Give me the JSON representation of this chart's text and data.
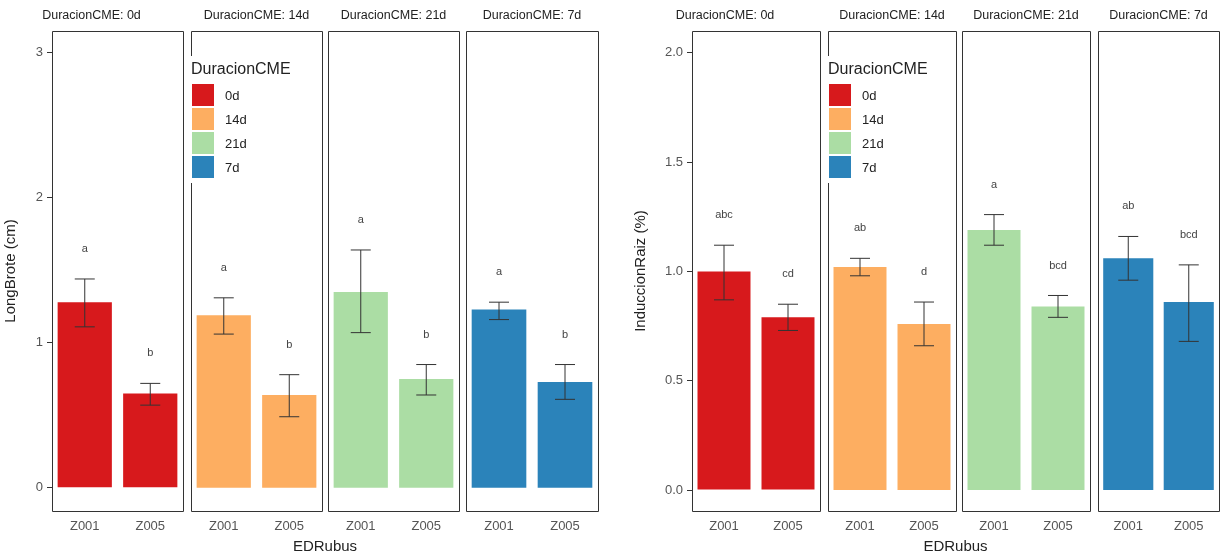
{
  "chart_data": [
    {
      "type": "bar",
      "title": "DuracionCME: 0d",
      "ylabel": "LongBrote (cm)",
      "categories": [
        "Z001",
        "Z005"
      ],
      "ylim": [
        -0.16,
        3.15
      ],
      "yticks": [
        0,
        1,
        2,
        3
      ],
      "grid": false,
      "legend": "right",
      "series": [
        {
          "name": "0d",
          "color": "#d7191c",
          "values": [
            1.28,
            0.65
          ],
          "errors": [
            [
              1.11,
              1.44
            ],
            [
              0.57,
              0.72
            ]
          ]
        }
      ],
      "annotations": [
        "a",
        "b"
      ]
    },
    {
      "type": "bar",
      "title": "DuracionCME: 14d",
      "xlabel": "EDRubus",
      "categories": [
        "Z001",
        "Z005"
      ],
      "ylim": [
        -0.16,
        3.15
      ],
      "tick_labels": "x",
      "grid": false,
      "legend": "top left",
      "legend_title": "DuracionCME",
      "series": [
        {
          "name": "14d",
          "color": "#fdae61",
          "values": [
            1.19,
            0.64
          ],
          "errors": [
            [
              1.06,
              1.31
            ],
            [
              0.49,
              0.78
            ]
          ]
        }
      ],
      "annotations": [
        "a",
        "b"
      ]
    },
    {
      "type": "bar",
      "title": "DuracionCME: 21d",
      "categories": [
        "Z001",
        "Z005"
      ],
      "ylim": [
        -0.16,
        3.15
      ],
      "tick_labels": "x",
      "grid": false,
      "legend": "left",
      "series": [
        {
          "name": "21d",
          "color": "#abdda4",
          "values": [
            1.35,
            0.75
          ],
          "errors": [
            [
              1.07,
              1.64
            ],
            [
              0.64,
              0.85
            ]
          ]
        }
      ],
      "annotations": [
        "a",
        "b"
      ]
    },
    {
      "type": "bar",
      "title": "DuracionCME: 7d",
      "categories": [
        "Z001",
        "Z005"
      ],
      "ylim": [
        -0.16,
        3.15
      ],
      "tick_labels": "x",
      "grid": false,
      "legend": "left",
      "series": [
        {
          "name": "7d",
          "color": "#2b83ba",
          "values": [
            1.23,
            0.73
          ],
          "errors": [
            [
              1.16,
              1.28
            ],
            [
              0.61,
              0.85
            ]
          ]
        }
      ],
      "annotations": [
        "a",
        "b"
      ]
    },
    {
      "type": "bar",
      "title": "DuracionCME: 0d",
      "ylabel": "InduccionRaiz (%)",
      "categories": [
        "Z001",
        "Z005"
      ],
      "ylim": [
        -0.096,
        2.1
      ],
      "yticks": [
        {
          "value": 0,
          "label": "0.0"
        },
        {
          "value": 0.5,
          "label": "0.5"
        },
        {
          "value": 1,
          "label": "1.0"
        },
        {
          "value": 1.5,
          "label": "1.5"
        },
        {
          "value": 2,
          "label": "2.0"
        }
      ],
      "grid": false,
      "legend": "right",
      "series": [
        {
          "name": "0d",
          "color": "#d7191c",
          "values": [
            1.0,
            0.79
          ],
          "errors": [
            [
              0.87,
              1.12
            ],
            [
              0.73,
              0.85
            ]
          ]
        }
      ],
      "annotations": [
        "abc",
        "cd"
      ]
    },
    {
      "type": "bar",
      "title": "DuracionCME: 14d",
      "xlabel": "EDRubus",
      "categories": [
        "Z001",
        "Z005"
      ],
      "ylim": [
        -0.096,
        2.1
      ],
      "tick_labels": "x",
      "grid": false,
      "legend": "top left",
      "legend_title": "DuracionCME",
      "series": [
        {
          "name": "14d",
          "color": "#fdae61",
          "values": [
            1.02,
            0.76
          ],
          "errors": [
            [
              0.98,
              1.06
            ],
            [
              0.66,
              0.86
            ]
          ]
        }
      ],
      "annotations": [
        "ab",
        "d"
      ]
    },
    {
      "type": "bar",
      "title": "DuracionCME: 21d",
      "categories": [
        "Z001",
        "Z005"
      ],
      "ylim": [
        -0.096,
        2.1
      ],
      "tick_labels": "x",
      "grid": false,
      "legend": "left",
      "series": [
        {
          "name": "21d",
          "color": "#abdda4",
          "values": [
            1.19,
            0.84
          ],
          "errors": [
            [
              1.12,
              1.26
            ],
            [
              0.79,
              0.89
            ]
          ]
        }
      ],
      "annotations": [
        "a",
        "bcd"
      ]
    },
    {
      "type": "bar",
      "title": "DuracionCME: 7d",
      "categories": [
        "Z001",
        "Z005"
      ],
      "ylim": [
        -0.096,
        2.1
      ],
      "tick_labels": "x",
      "grid": false,
      "legend": "left",
      "series": [
        {
          "name": "7d",
          "color": "#2b83ba",
          "values": [
            1.06,
            0.86
          ],
          "errors": [
            [
              0.96,
              1.16
            ],
            [
              0.68,
              1.03
            ]
          ]
        }
      ],
      "annotations": [
        "ab",
        "bcd"
      ]
    }
  ]
}
